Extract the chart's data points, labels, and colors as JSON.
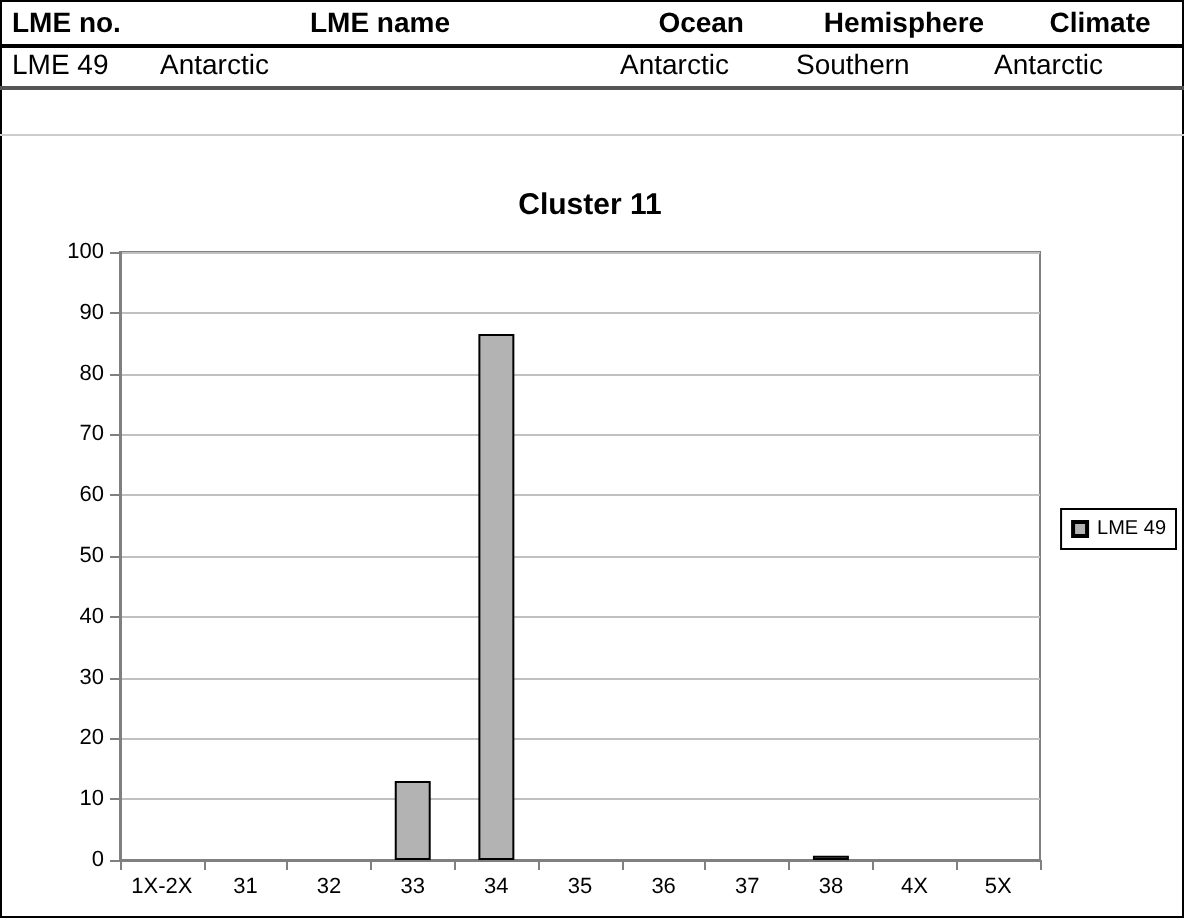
{
  "chart_data": {
    "type": "bar",
    "title": "Cluster 11",
    "annotations": [
      "LME no.",
      "LME name",
      "Ocean",
      "Hemisphere",
      "Climate",
      "LME 49",
      "Antarctic",
      "Antarctic",
      "Southern",
      "Antarctic"
    ],
    "categories": [
      "1X-2X",
      "31",
      "32",
      "33",
      "34",
      "35",
      "36",
      "37",
      "38",
      "4X",
      "5X"
    ],
    "series": [
      {
        "name": "LME 49",
        "color": "#b3b3b3",
        "values": [
          0,
          0,
          0,
          13,
          86.5,
          0,
          0,
          0,
          0.7,
          0,
          0
        ]
      }
    ],
    "ylim": [
      0,
      100
    ],
    "yticks": [
      0,
      10,
      20,
      30,
      40,
      50,
      60,
      70,
      80,
      90,
      100
    ],
    "grid": "y",
    "legend": "right"
  }
}
